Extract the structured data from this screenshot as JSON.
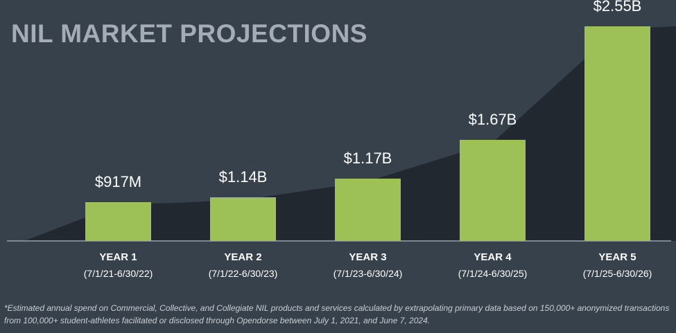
{
  "chart_data": {
    "type": "bar",
    "title": "NIL MARKET PROJECTIONS",
    "categories": [
      "YEAR 1",
      "YEAR 2",
      "YEAR 3",
      "YEAR 4",
      "YEAR 5"
    ],
    "category_subtitles": [
      "(7/1/21-6/30/22)",
      "(7/1/22-6/30/23)",
      "(7/1/23-6/30/24)",
      "(7/1/24-6/30/25)",
      "(7/1/25-6/30/26)"
    ],
    "values": [
      917,
      1140,
      1170,
      1670,
      2550
    ],
    "value_unit": "$M",
    "data_labels": [
      "$917M",
      "$1.14B",
      "$1.17B",
      "$1.67B",
      "$2.55B"
    ],
    "xlabel": "",
    "ylabel": "",
    "grid": false,
    "colors": {
      "bar": "#9dc157",
      "background": "#37414b",
      "trend_area": "#222830",
      "title": "#a3acb7"
    }
  },
  "footnote": "*Estimated annual spend on Commercial, Collective, and Collegiate NIL products and services calculated by extrapolating primary data based on 150,000+ anonymized transactions from 100,000+ student-athletes facilitated or disclosed through Opendorse between July 1, 2021, and June 7, 2024."
}
